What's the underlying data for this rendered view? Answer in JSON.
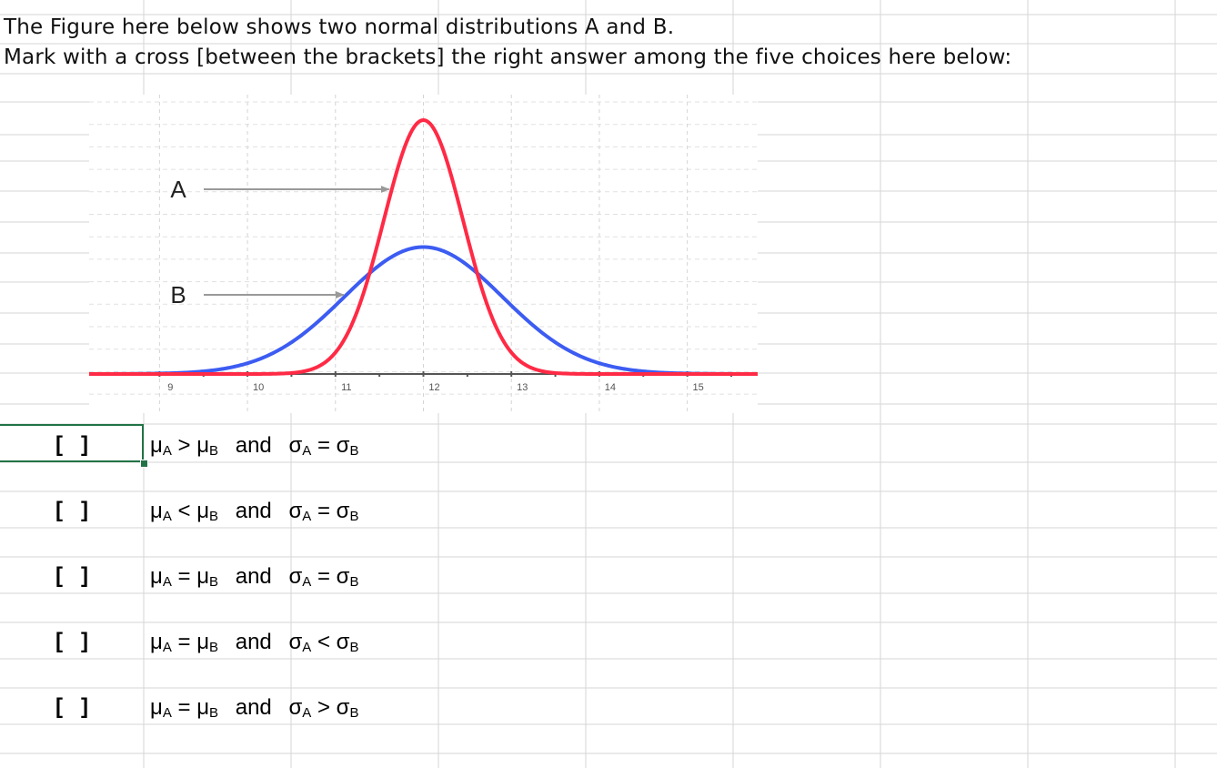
{
  "question": {
    "line1": "The Figure here below shows two normal distributions A and B.",
    "line2": "Mark with a cross [between the brackets] the right answer among the five choices here below:"
  },
  "chart_data": {
    "type": "line",
    "x_ticks": [
      "9",
      "10",
      "11",
      "12",
      "13",
      "14",
      "15"
    ],
    "xlim": [
      8.2,
      15.8
    ],
    "grid": true,
    "colors": {
      "A": "#ff2a45",
      "B": "#3c5cf2",
      "arrow": "#999999"
    },
    "series": [
      {
        "name": "A",
        "mean": 12,
        "sd": 0.45,
        "peak": 1.0
      },
      {
        "name": "B",
        "mean": 12,
        "sd": 0.9,
        "peak": 0.5
      }
    ]
  },
  "choices": [
    {
      "bracket": "[   ]",
      "mu_op": ">",
      "conj": "and",
      "sigma_op": "="
    },
    {
      "bracket": "[   ]",
      "mu_op": "<",
      "conj": "and",
      "sigma_op": "="
    },
    {
      "bracket": "[   ]",
      "mu_op": "=",
      "conj": "and",
      "sigma_op": "="
    },
    {
      "bracket": "[   ]",
      "mu_op": "=",
      "conj": "and",
      "sigma_op": "<"
    },
    {
      "bracket": "[   ]",
      "mu_op": "=",
      "conj": "and",
      "sigma_op": ">"
    }
  ],
  "symbols": {
    "mu": "μ",
    "sigma": "σ",
    "sub_a": "A",
    "sub_b": "B"
  }
}
